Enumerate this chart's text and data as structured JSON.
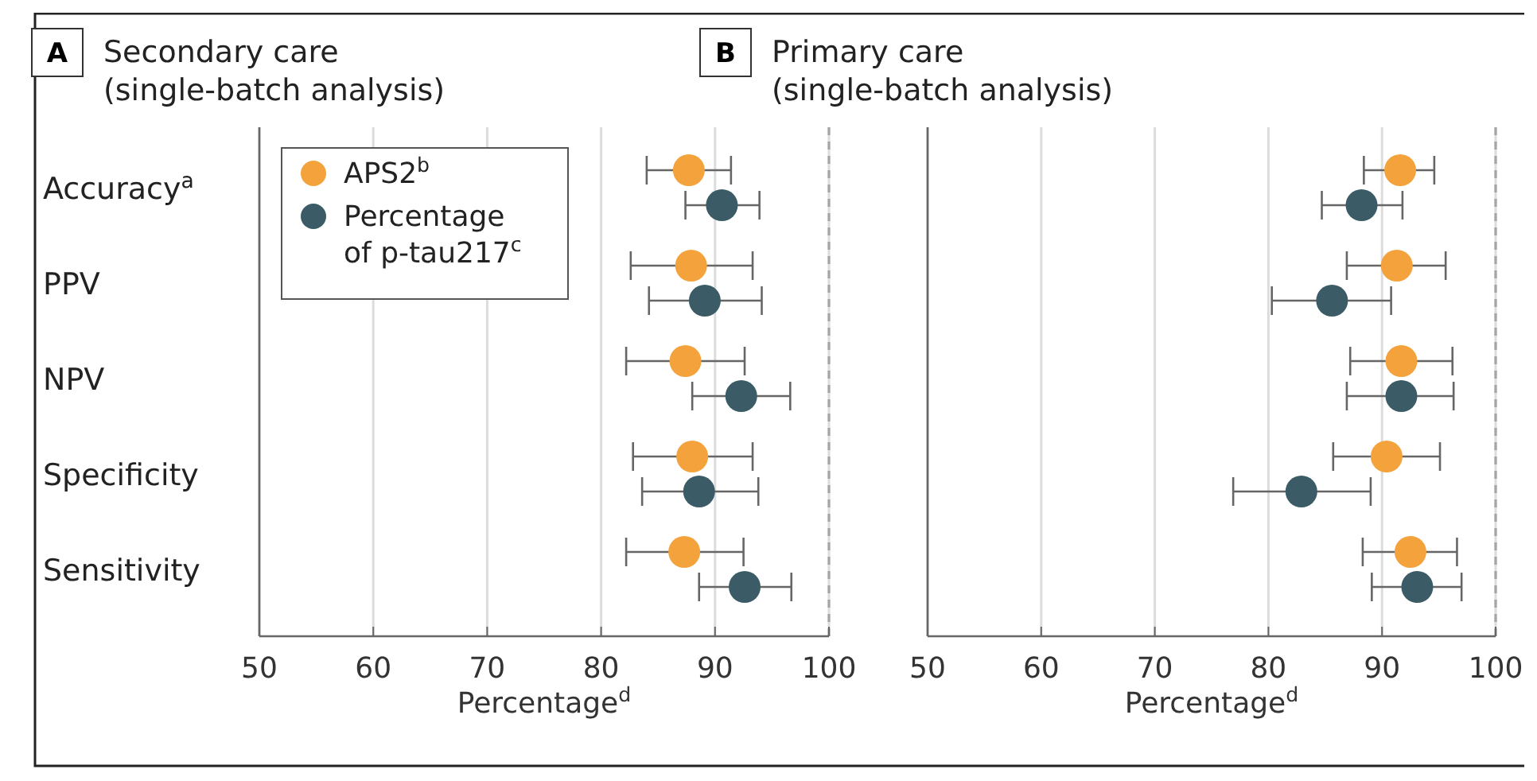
{
  "chart_data": [
    {
      "type": "scatter",
      "orientation": "horizontal",
      "title": "Secondary care (single-batch analysis)",
      "annotations": [
        "A"
      ],
      "xlabel": "Percentage$^{d}$",
      "categories": [
        "Accuracy$^{a}$",
        "PPV",
        "NPV",
        "Specificity",
        "Sensitivity"
      ],
      "xlim": [
        50,
        100
      ],
      "xticks": [
        50,
        60,
        70,
        80,
        90,
        100
      ],
      "grid": "x",
      "marker": "circle",
      "legend": "top left",
      "ref_lines": [
        {
          "axis": "x",
          "value": 100,
          "line_style": "dashed",
          "color": "#a6a6a6"
        }
      ],
      "series": [
        {
          "name": "APS2$^{b}$",
          "color": "#f4a23c",
          "values": [
            87.7,
            87.9,
            87.4,
            88.0,
            87.3
          ],
          "errors": [
            [
              84.0,
              91.4
            ],
            [
              82.6,
              93.3
            ],
            [
              82.2,
              92.6
            ],
            [
              82.8,
              93.3
            ],
            [
              82.2,
              92.5
            ]
          ]
        },
        {
          "name": "Percentage of p-tau217$^{c}$",
          "color": "#3b5b67",
          "values": [
            90.6,
            89.1,
            92.3,
            88.6,
            92.6
          ],
          "errors": [
            [
              87.4,
              93.9
            ],
            [
              84.2,
              94.1
            ],
            [
              88.0,
              96.6
            ],
            [
              83.6,
              93.8
            ],
            [
              88.6,
              96.7
            ]
          ]
        }
      ]
    },
    {
      "type": "scatter",
      "title": "Primary care (single-batch analysis)",
      "annotations": [
        "B"
      ],
      "xlabel": "Percentage$^{d}$",
      "orientation": "horizontal",
      "categories": [
        null,
        null,
        null,
        null,
        null
      ],
      "xlim": [
        50,
        100
      ],
      "xticks": [
        50,
        60,
        70,
        80,
        90,
        100
      ],
      "grid": "x",
      "marker": "circle",
      "legend": false,
      "ref_lines": [
        {
          "axis": "x",
          "value": 100,
          "line_style": "dashed",
          "color": "#a6a6a6"
        }
      ],
      "series": [
        {
          "color": "#f4a23c",
          "values": [
            91.6,
            91.3,
            91.7,
            90.4,
            92.5
          ],
          "errors": [
            [
              88.4,
              94.6
            ],
            [
              86.9,
              95.6
            ],
            [
              87.2,
              96.2
            ],
            [
              85.7,
              95.1
            ],
            [
              88.3,
              96.6
            ]
          ]
        },
        {
          "color": "#3b5b67",
          "values": [
            88.2,
            85.6,
            91.7,
            82.9,
            93.1
          ],
          "errors": [
            [
              84.7,
              91.8
            ],
            [
              80.3,
              90.8
            ],
            [
              86.9,
              96.3
            ],
            [
              76.9,
              89.0
            ],
            [
              89.1,
              97.0
            ]
          ]
        }
      ]
    }
  ]
}
